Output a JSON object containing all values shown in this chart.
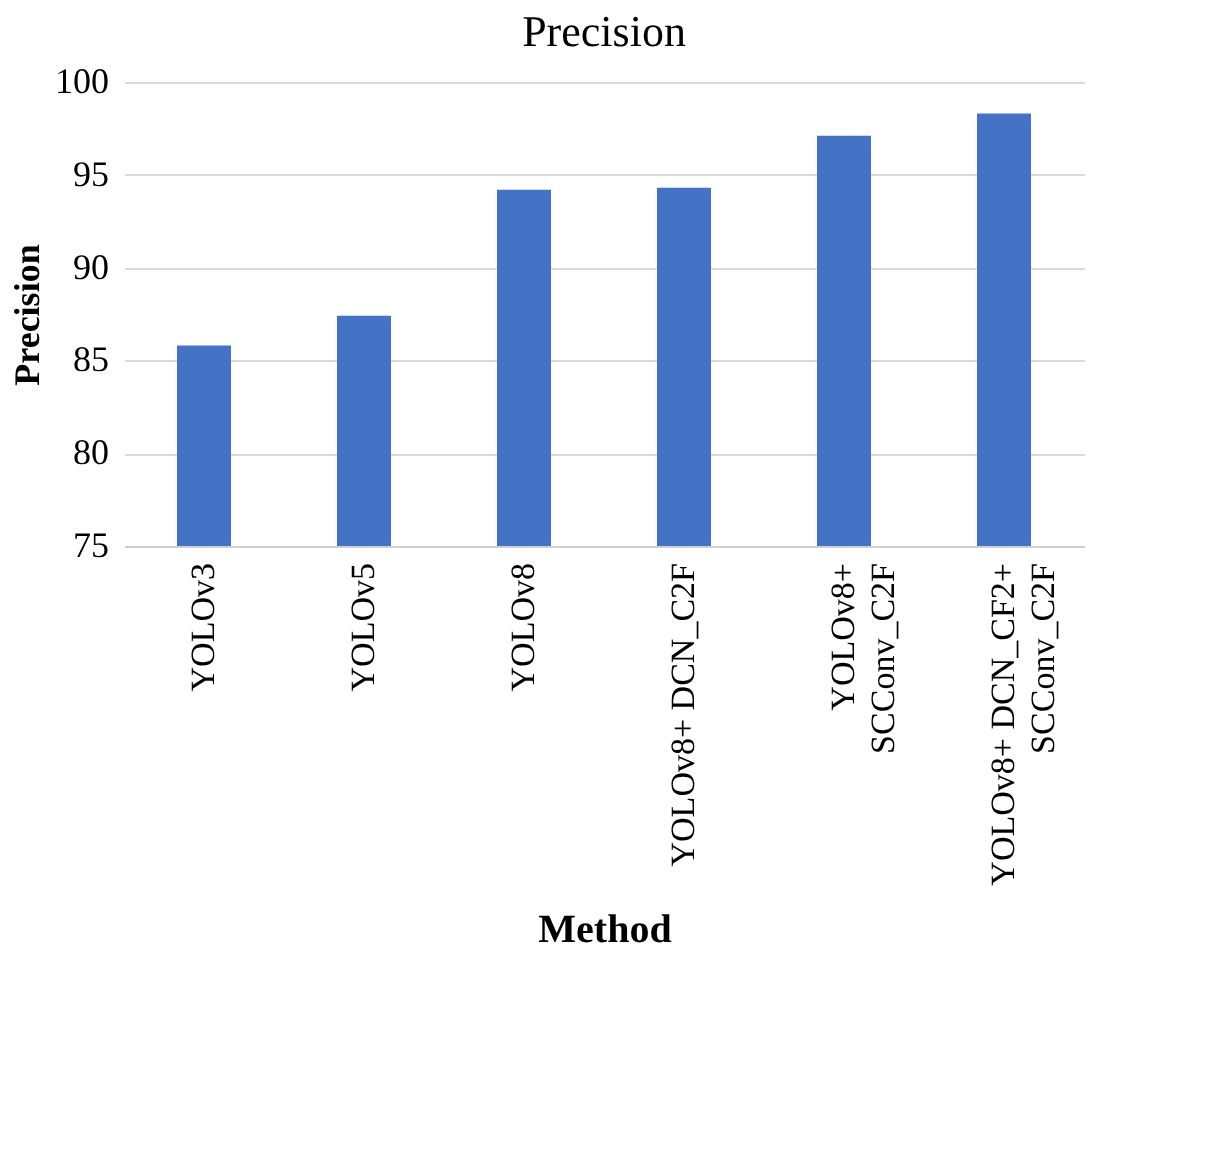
{
  "chart_data": {
    "type": "bar",
    "title": "Precision",
    "xlabel": "Method",
    "ylabel": "Precision",
    "categories": [
      "YOLOv3",
      "YOLOv5",
      "YOLOv8",
      "YOLOv8+ DCN_C2F",
      "YOLOv8+\nSCConv_C2F",
      "YOLOv8+ DCN_CF2+\nSCConv_C2F"
    ],
    "values": [
      85.8,
      87.4,
      94.2,
      94.3,
      97.1,
      98.3
    ],
    "color": "#4472c4",
    "ylim": [
      75,
      100
    ],
    "yticks": [
      75,
      80,
      85,
      90,
      95,
      100
    ],
    "grid": "y"
  }
}
